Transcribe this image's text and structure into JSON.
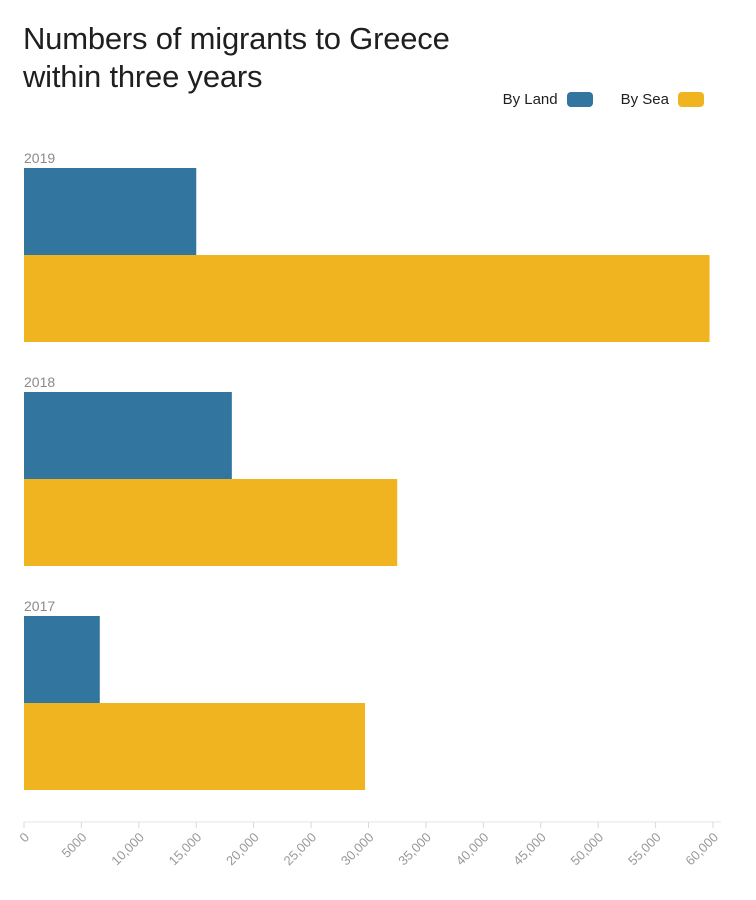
{
  "chart_data": {
    "type": "bar",
    "orientation": "horizontal",
    "title": "Numbers of migrants to Greece within three years",
    "title_lines": [
      "Numbers of migrants to Greece",
      "within three years"
    ],
    "categories": [
      "2019",
      "2018",
      "2017"
    ],
    "series": [
      {
        "name": "By Land",
        "color": "#32769f",
        "values": [
          15000,
          18100,
          6600
        ]
      },
      {
        "name": "By Sea",
        "color": "#efb420",
        "values": [
          59700,
          32500,
          29700
        ]
      }
    ],
    "xlim": [
      0,
      60000
    ],
    "x_ticks": [
      0,
      5000,
      10000,
      15000,
      20000,
      25000,
      30000,
      35000,
      40000,
      45000,
      50000,
      55000,
      60000
    ],
    "x_tick_labels": [
      "0",
      "5000",
      "10,000",
      "15,000",
      "20,000",
      "25,000",
      "30,000",
      "35,000",
      "40,000",
      "45,000",
      "50,000",
      "55,000",
      "60,000"
    ],
    "xlabel": "",
    "ylabel": "",
    "grid": false,
    "legend_position": "top-right"
  }
}
